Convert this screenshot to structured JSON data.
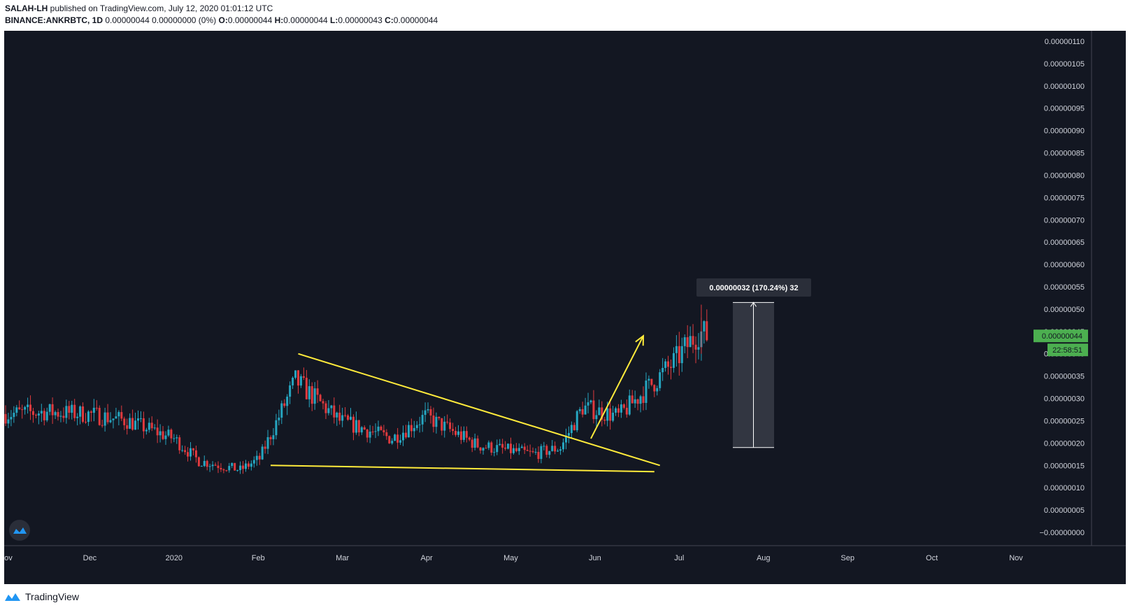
{
  "header": {
    "author": "SALAH-LH",
    "published": "published on TradingView.com, July 12, 2020 01:01:12 UTC",
    "symbol": "BINANCE:ANKRBTC, 1D",
    "change": "0.00000044 0.00000000 (0%)",
    "o_label": "O:",
    "o_value": "0.00000044",
    "h_label": "H:",
    "h_value": "0.00000044",
    "l_label": "L:",
    "l_value": "0.00000043",
    "c_label": "C:",
    "c_value": "0.00000044"
  },
  "footer": {
    "brand": "TradingView"
  },
  "colors": {
    "background": "#131722",
    "up": "#26a6c1",
    "down": "#e03a3e",
    "trendline": "#ffeb3b",
    "price_badge": "#4caf50",
    "axis_text": "#d1d4dc",
    "range_box": "#363a45"
  },
  "chart_data": {
    "type": "candlestick",
    "x_axis": {
      "labels": [
        "Nov",
        "Dec",
        "2020",
        "Feb",
        "Mar",
        "Apr",
        "May",
        "Jun",
        "Jul",
        "Aug",
        "Sep",
        "Oct",
        "Nov"
      ],
      "range": [
        "2019-11-01",
        "2020-11-01"
      ]
    },
    "y_axis": {
      "labels": [
        "0.00000110",
        "0.00000105",
        "0.00000100",
        "0.00000095",
        "0.00000090",
        "0.00000085",
        "0.00000080",
        "0.00000075",
        "0.00000070",
        "0.00000065",
        "0.00000060",
        "0.00000055",
        "0.00000050",
        "0.00000045",
        "0.00000040",
        "0.00000035",
        "0.00000030",
        "0.00000025",
        "0.00000020",
        "0.00000015",
        "0.00000010",
        "0.00000005",
        "−0.00000000"
      ],
      "range": [
        0.0,
        1.1e-06
      ]
    },
    "series": [
      {
        "values": [
          {
            "date": "2019-11-01",
            "close": 2.65e-07
          },
          {
            "date": "2019-11-15",
            "close": 2.7e-07
          },
          {
            "date": "2019-12-01",
            "close": 2.65e-07
          },
          {
            "date": "2019-12-15",
            "close": 2.5e-07
          },
          {
            "date": "2020-01-01",
            "close": 2.1e-07
          },
          {
            "date": "2020-01-10",
            "close": 1.6e-07
          },
          {
            "date": "2020-01-25",
            "close": 1.4e-07
          },
          {
            "date": "2020-02-01",
            "close": 1.65e-07
          },
          {
            "date": "2020-02-14",
            "close": 3.4e-07
          },
          {
            "date": "2020-03-01",
            "close": 2.5e-07
          },
          {
            "date": "2020-03-20",
            "close": 2.1e-07
          },
          {
            "date": "2020-04-01",
            "close": 2.6e-07
          },
          {
            "date": "2020-04-20",
            "close": 1.95e-07
          },
          {
            "date": "2020-05-10",
            "close": 1.75e-07
          },
          {
            "date": "2020-05-20",
            "close": 1.9e-07
          },
          {
            "date": "2020-05-28",
            "close": 2.8e-07
          },
          {
            "date": "2020-06-10",
            "close": 2.6e-07
          },
          {
            "date": "2020-06-20",
            "close": 3.2e-07
          },
          {
            "date": "2020-06-30",
            "close": 3.8e-07
          },
          {
            "date": "2020-07-09",
            "close": 4.5e-07
          },
          {
            "date": "2020-07-12",
            "close": 4.4e-07
          }
        ],
        "annotated_high": 5.1e-07
      }
    ],
    "last_price": "0.00000044",
    "countdown": "22:58:51",
    "annotations": {
      "range_label": "0.00000032 (170.24%) 32",
      "range_from": 1.9e-07,
      "range_to": 5.15e-07,
      "descending_line": [
        [
          "2020-02-15",
          4e-07
        ],
        [
          "2020-06-25",
          1.5e-07
        ]
      ],
      "support_line": [
        [
          "2020-02-05",
          1.5e-07
        ],
        [
          "2020-06-23",
          1.36e-07
        ]
      ],
      "breakout_arrow": [
        [
          "2020-05-31",
          2.1e-07
        ],
        [
          "2020-06-19",
          4.4e-07
        ]
      ]
    }
  }
}
